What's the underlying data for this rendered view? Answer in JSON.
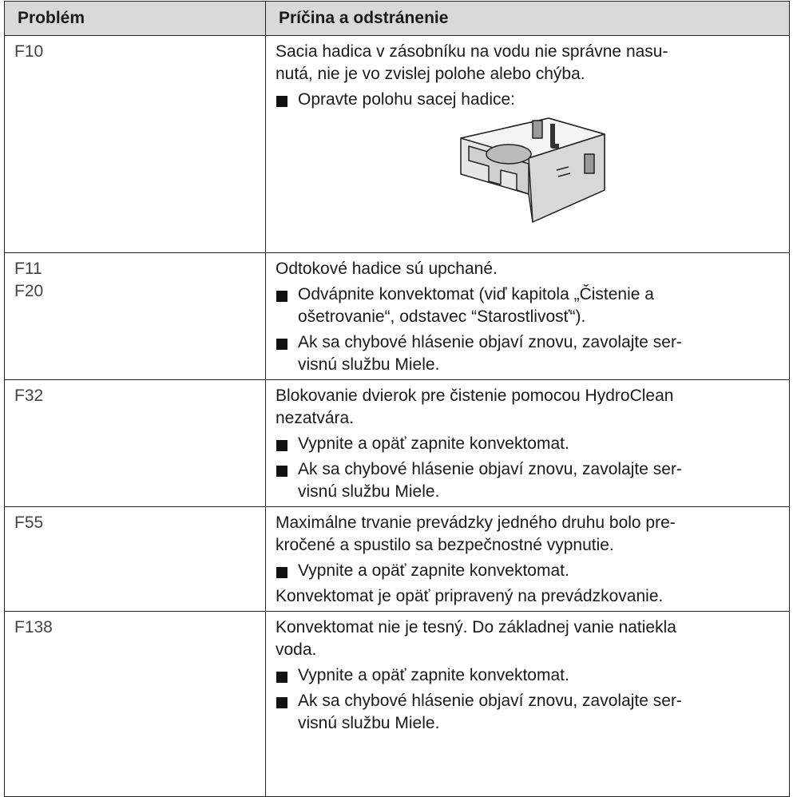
{
  "table": {
    "header": [
      "Problém",
      "Príčina a odstránenie"
    ],
    "rows": [
      {
        "codes": [
          "F10"
        ],
        "blocks": [
          {
            "text": [
              "Sacia hadica v zásobníku na vodu nie správne nasu-",
              "nutá, nie je vo zvislej polohe alebo chýba."
            ]
          },
          {
            "bullet": [
              "Opravte polohu sacej hadice:"
            ]
          }
        ]
      },
      {
        "codes": [
          "F11",
          "F20"
        ],
        "blocks": [
          {
            "text": [
              "Odtokové hadice sú upchané."
            ]
          },
          {
            "bullet": [
              "Odvápnite konvektomat (viď kapitola „Čistenie a",
              "ošetrovanie“, odstavec “Starostlivosť“)."
            ]
          },
          {
            "bullet": [
              "Ak sa chybové hlásenie objaví znovu, zavolajte ser-",
              "visnú službu Miele."
            ]
          }
        ]
      },
      {
        "codes": [
          "F32"
        ],
        "blocks": [
          {
            "text": [
              "Blokovanie dvierok pre čistenie pomocou HydroClean",
              "nezatvára."
            ]
          },
          {
            "bullet": [
              "Vypnite a opäť zapnite konvektomat."
            ]
          },
          {
            "bullet": [
              "Ak sa chybové hlásenie objaví znovu, zavolajte ser-",
              "visnú službu Miele."
            ]
          }
        ]
      },
      {
        "codes": [
          "F55"
        ],
        "blocks": [
          {
            "text": [
              "Maximálne trvanie prevádzky jedného druhu bolo pre-",
              "kročené a spustilo sa bezpečnostné vypnutie."
            ]
          },
          {
            "bullet": [
              "Vypnite a opäť zapnite konvektomat."
            ]
          },
          {
            "text": [
              "Konvektomat je opäť pripravený na prevádzkovanie."
            ]
          }
        ]
      },
      {
        "codes": [
          "F138"
        ],
        "blocks": [
          {
            "text": [
              "Konvektomat nie je tesný. Do základnej vanie natiekla",
              "voda."
            ]
          },
          {
            "bullet": [
              "Vypnite a opäť zapnite konvektomat."
            ]
          },
          {
            "bullet": [
              "Ak sa chybové hlásenie objaví znovu, zavolajte ser-",
              "visnú službu Miele."
            ]
          }
        ]
      }
    ]
  }
}
